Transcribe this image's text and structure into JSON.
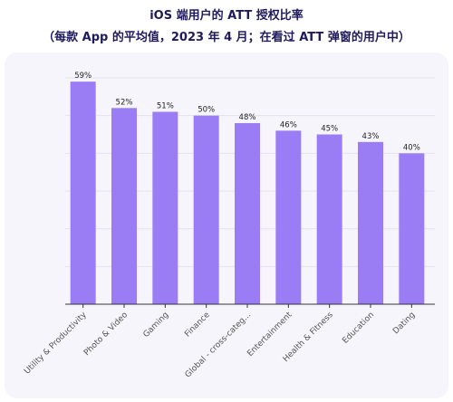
{
  "header": {
    "title": "iOS 端用户的 ATT 授权比率",
    "subtitle": "（每款 App 的平均值，2023 年 4 月；在看过 ATT 弹窗的用户中）"
  },
  "colors": {
    "bar": "#9a7cf5",
    "title": "#1f1a5c",
    "card": "#f6f5fb",
    "grid": "#e4e2ee",
    "axis": "#333333"
  },
  "chart_data": {
    "type": "bar",
    "title": "iOS 端用户的 ATT 授权比率",
    "subtitle": "（每款 App 的平均值，2023 年 4 月；在看过 ATT 弹窗的用户中）",
    "categories": [
      "Utility & Productivity",
      "Photo & Video",
      "Gaming",
      "Finance",
      "Global - cross-categ...",
      "Entertainment",
      "Health & Fitness",
      "Education",
      "Dating"
    ],
    "values": [
      59,
      52,
      51,
      50,
      48,
      46,
      45,
      43,
      40
    ],
    "data_labels": [
      "59%",
      "52%",
      "51%",
      "50%",
      "48%",
      "46%",
      "45%",
      "43%",
      "40%"
    ],
    "ylim": [
      0,
      60
    ],
    "grid": true,
    "legend": "none",
    "xlabel": "",
    "ylabel": ""
  }
}
